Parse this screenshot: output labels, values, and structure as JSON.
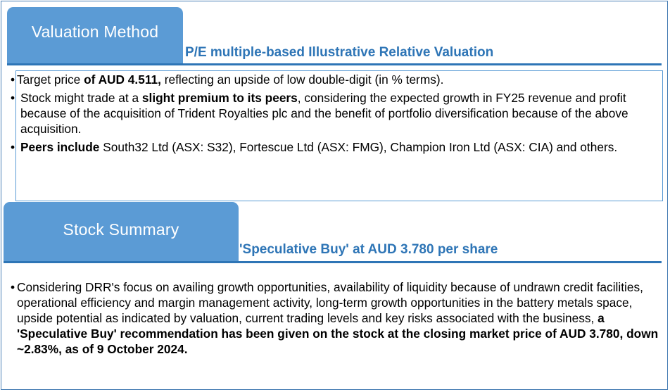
{
  "valuation": {
    "tab_label": "Valuation Method",
    "subtitle": "P/E multiple-based Illustrative Relative Valuation",
    "bullet_char": "•",
    "bullets": [
      {
        "pre": "Target price ",
        "bold": "of AUD 4.511,",
        "post": " reflecting an upside of low double-digit (in % terms)."
      },
      {
        "pre": "Stock might trade at a ",
        "bold": "slight premium to its peers",
        "post": ", considering the expected growth in FY25 revenue and profit because of the acquisition of Trident Royalties plc and the benefit of portfolio diversification because of the above acquisition."
      },
      {
        "pre": "",
        "bold": "Peers include",
        "post": " South32 Ltd (ASX: S32), Fortescue Ltd (ASX: FMG), Champion Iron Ltd (ASX: CIA) and others."
      }
    ]
  },
  "summary": {
    "tab_label": "Stock Summary",
    "subtitle": "'Speculative Buy' at AUD 3.780 per share",
    "bullet_char": "•",
    "bullet": {
      "pre": "Considering DRR's focus on availing growth opportunities, availability of liquidity because of undrawn credit facilities, operational efficiency and margin management activity, long-term growth opportunities in the battery metals space, upside potential as indicated by valuation, current trading levels and key risks associated with the business, ",
      "bold": "a 'Speculative Buy' recommendation has been given on the stock at the closing market price of AUD 3.780, down ~2.83%, as of 9 October 2024."
    }
  },
  "colors": {
    "tab_fill": "#5b9bd5",
    "accent_blue": "#2e75b6",
    "border_blue": "#5b9bd5"
  }
}
